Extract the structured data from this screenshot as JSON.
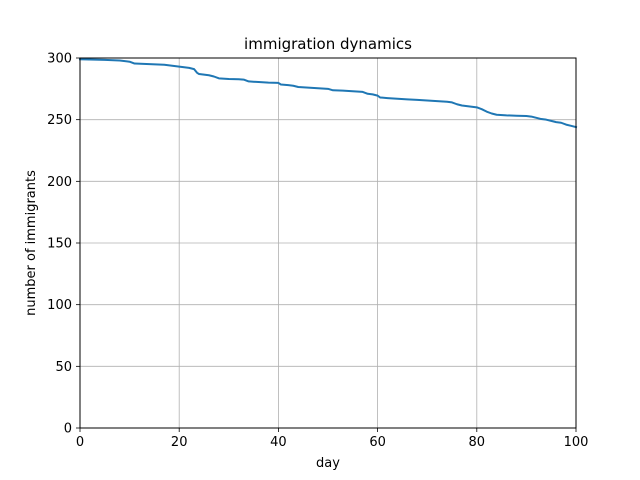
{
  "chart_data": {
    "type": "line",
    "title": "immigration dynamics",
    "xlabel": "day",
    "ylabel": "number of immigrants",
    "xlim": [
      0,
      100
    ],
    "ylim": [
      0,
      300
    ],
    "xticks": [
      0,
      20,
      40,
      60,
      80,
      100
    ],
    "yticks": [
      0,
      50,
      100,
      150,
      200,
      250,
      300
    ],
    "xtick_labels": [
      "0",
      "20",
      "40",
      "60",
      "80",
      "100"
    ],
    "ytick_labels": [
      "0",
      "50",
      "100",
      "150",
      "200",
      "250",
      "300"
    ],
    "grid": true,
    "line_color": "#1f77b4",
    "series": [
      {
        "x": [
          0,
          5,
          8,
          10,
          11,
          14,
          17,
          18,
          19,
          21,
          22,
          23,
          23.6,
          24,
          26,
          27,
          28,
          30,
          32,
          33,
          34,
          36,
          38,
          40,
          40.5,
          42,
          43,
          44,
          46,
          48,
          50,
          51,
          53,
          55,
          57,
          58,
          59,
          60,
          60.5,
          62,
          64,
          66,
          68,
          70,
          72,
          74,
          75,
          76,
          77,
          79,
          80,
          81,
          82,
          83,
          84,
          86,
          88,
          90,
          91,
          92,
          93,
          94,
          95,
          96,
          97,
          98,
          99,
          100
        ],
        "y": [
          299,
          298.5,
          298,
          297,
          295.5,
          295,
          294.5,
          294,
          293.5,
          292.5,
          292,
          291,
          288,
          287,
          286,
          285,
          283.5,
          283,
          282.8,
          282.5,
          281,
          280.5,
          280,
          279.8,
          278.5,
          278,
          277.5,
          276.5,
          276,
          275.5,
          275,
          273.8,
          273.5,
          273,
          272.5,
          271,
          270.5,
          269.5,
          268,
          267.5,
          267,
          266.5,
          266,
          265.5,
          265,
          264.5,
          264,
          262.5,
          261.5,
          260.5,
          260,
          258.5,
          256.5,
          255,
          254,
          253.5,
          253.2,
          253,
          252.5,
          251.5,
          250.5,
          250,
          249,
          248,
          247.5,
          246,
          245,
          244
        ]
      }
    ]
  }
}
